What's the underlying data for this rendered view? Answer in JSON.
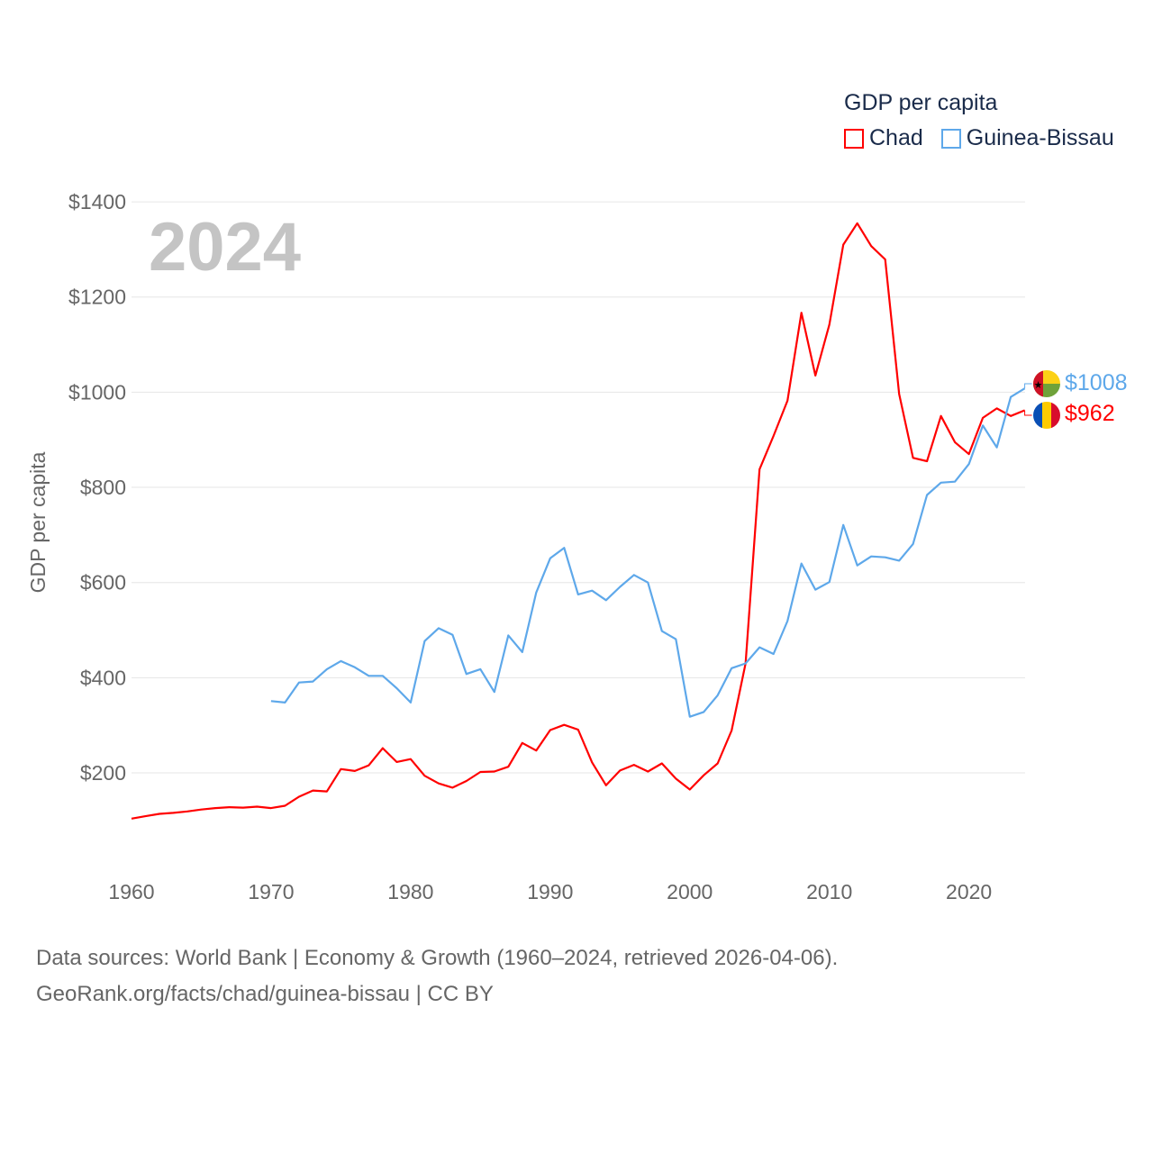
{
  "legend": {
    "title": "GDP per capita",
    "items": [
      {
        "label": "Chad",
        "color": "#ff0000"
      },
      {
        "label": "Guinea-Bissau",
        "color": "#5ea8ea"
      }
    ]
  },
  "year_label": "2024",
  "end_labels": {
    "guinea_bissau": "$1008",
    "chad": "$962"
  },
  "footer": {
    "line1": "Data sources: World Bank | Economy & Growth (1960–2024, retrieved 2026-04-06).",
    "line2": "GeoRank.org/facts/chad/guinea-bissau | CC BY"
  },
  "chart_data": {
    "type": "line",
    "title": "GDP per capita",
    "xlabel": "",
    "ylabel": "GDP per capita",
    "xlim": [
      1960,
      2024
    ],
    "ylim": [
      0,
      1400
    ],
    "x_ticks": [
      "1960",
      "1970",
      "1980",
      "1990",
      "2000",
      "2010",
      "2020"
    ],
    "y_ticks": [
      "$200",
      "$400",
      "$600",
      "$800",
      "$1000",
      "$1200",
      "$1400"
    ],
    "grid": true,
    "legend_position": "top-right",
    "series": [
      {
        "name": "Chad",
        "color": "#ff0000",
        "start_year": 1960,
        "values": [
          104,
          109,
          114,
          116,
          119,
          123,
          126,
          128,
          127,
          129,
          126,
          131,
          150,
          163,
          161,
          208,
          204,
          216,
          252,
          223,
          229,
          194,
          178,
          169,
          183,
          202,
          203,
          213,
          263,
          247,
          290,
          301,
          291,
          222,
          174,
          205,
          217,
          203,
          220,
          188,
          165,
          195,
          220,
          289,
          430,
          838,
          908,
          982,
          1167,
          1035,
          1142,
          1310,
          1355,
          1307,
          1279,
          996,
          862,
          855,
          950,
          895,
          870,
          946,
          966,
          950,
          962
        ]
      },
      {
        "name": "Guinea-Bissau",
        "color": "#5ea8ea",
        "start_year": 1970,
        "values": [
          351,
          348,
          390,
          392,
          418,
          435,
          422,
          404,
          404,
          378,
          348,
          477,
          504,
          490,
          408,
          418,
          370,
          489,
          454,
          579,
          651,
          673,
          575,
          583,
          563,
          591,
          616,
          600,
          498,
          481,
          318,
          328,
          363,
          420,
          430,
          464,
          450,
          519,
          640,
          585,
          601,
          721,
          636,
          655,
          653,
          646,
          681,
          784,
          810,
          812,
          849,
          930,
          884,
          990,
          1008
        ]
      }
    ]
  }
}
